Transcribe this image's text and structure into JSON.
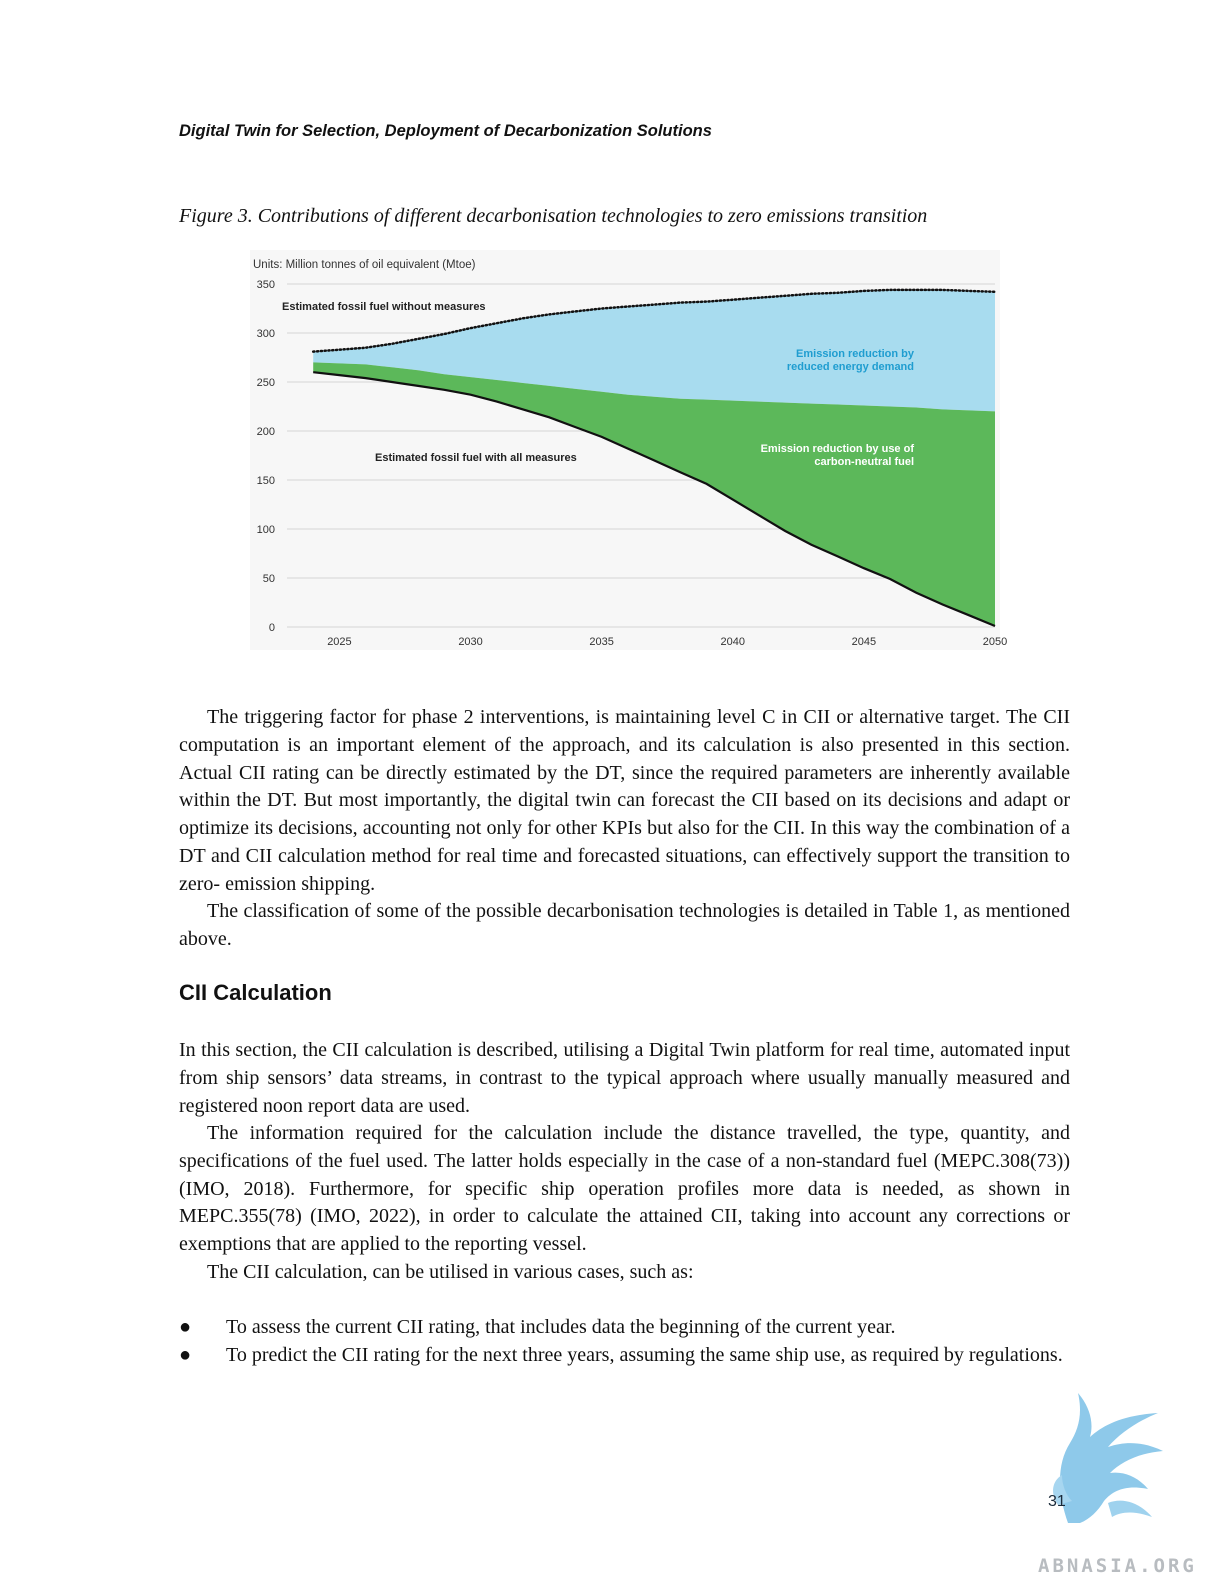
{
  "header": {
    "running_head": "Digital Twin for Selection, Deployment of Decarbonization Solutions"
  },
  "figure": {
    "caption": "Figure 3. Contributions of different decarbonisation technologies to zero emissions transition"
  },
  "chart_data": {
    "type": "area",
    "units_label": "Units: Million tonnes of oil equivalent (Mtoe)",
    "x_ticks": [
      2025,
      2030,
      2035,
      2040,
      2045,
      2050
    ],
    "y_ticks": [
      0,
      50,
      100,
      150,
      200,
      250,
      300,
      350
    ],
    "xlim": [
      2023,
      2050
    ],
    "ylim": [
      0,
      350
    ],
    "grid": true,
    "x": [
      2024,
      2025,
      2026,
      2027,
      2028,
      2029,
      2030,
      2031,
      2032,
      2033,
      2034,
      2035,
      2036,
      2037,
      2038,
      2039,
      2040,
      2041,
      2042,
      2043,
      2044,
      2045,
      2046,
      2047,
      2048,
      2049,
      2050
    ],
    "series": [
      {
        "name": "Estimated fossil fuel without measures",
        "style": "dotted",
        "values": [
          281,
          283,
          285,
          289,
          294,
          299,
          305,
          310,
          315,
          319,
          322,
          325,
          327,
          329,
          331,
          332,
          334,
          336,
          338,
          340,
          341,
          343,
          344,
          344,
          344,
          343,
          342
        ]
      },
      {
        "name": "",
        "style": "boundary",
        "values": [
          270,
          269,
          268,
          265,
          262,
          258,
          255,
          252,
          249,
          246,
          243,
          240,
          237,
          235,
          233,
          232,
          231,
          230,
          229,
          228,
          227,
          226,
          225,
          224,
          222,
          221,
          220
        ]
      },
      {
        "name": "Estimated fossil fuel with all measures",
        "style": "solid",
        "values": [
          260,
          257,
          254,
          250,
          246,
          242,
          237,
          230,
          222,
          214,
          204,
          194,
          182,
          170,
          158,
          146,
          130,
          114,
          98,
          84,
          72,
          60,
          49,
          35,
          23,
          12,
          1
        ]
      }
    ],
    "area_labels": {
      "reduced_energy_demand": [
        "Emission reduction by",
        "reduced energy demand"
      ],
      "carbon_neutral_fuel": [
        "Emission reduction by use of",
        "carbon-neutral fuel"
      ]
    },
    "colors": {
      "demand_area": "#a8dcef",
      "fuel_area": "#5cb85a",
      "demand_text": "#1f9dd0",
      "line": "#111111"
    }
  },
  "paragraphs": [
    "The triggering factor for phase 2 interventions, is maintaining level C in CII or alternative target. The CII computation is an important element of the approach, and its calculation is also presented in this section. Actual CII rating can be directly estimated by the DT, since the required parameters are inherently available within the DT. But most importantly, the digital twin can forecast the CII based on its decisions and adapt or optimize its decisions, accounting not only for other KPIs but also for the CII. In this way the combination of a DT and CII calculation method for real time and forecasted situations, can effectively support the transition to zero- emission shipping.",
    "The classification of some of the possible decarbonisation technologies is detailed in Table 1, as mentioned above."
  ],
  "section": {
    "heading": "CII Calculation",
    "paragraphs": [
      "In this section, the CII calculation is described, utilising a Digital Twin platform for real time, automated input from ship sensors’ data streams, in contrast to the typical approach where usually manually measured and registered noon report data are used.",
      "The information required for the calculation include the distance travelled, the type, quantity, and specifications of the fuel used. The latter holds especially in the case of a non-standard fuel (MEPC.308(73)) (IMO, 2018). Furthermore, for specific ship operation profiles more data is needed, as shown in MEPC.355(78) (IMO, 2022), in order to calculate the attained CII, taking into account any corrections or exemptions that are applied to the reporting vessel.",
      "The CII calculation, can be utilised in various cases, such as:"
    ],
    "bullets": [
      "To assess the current CII rating, that includes data the beginning of the current year.",
      "To predict the CII rating for the next three years, assuming the same ship use, as required by regulations."
    ]
  },
  "footer": {
    "page_number": "31",
    "watermark": "ABNASIA.ORG"
  }
}
